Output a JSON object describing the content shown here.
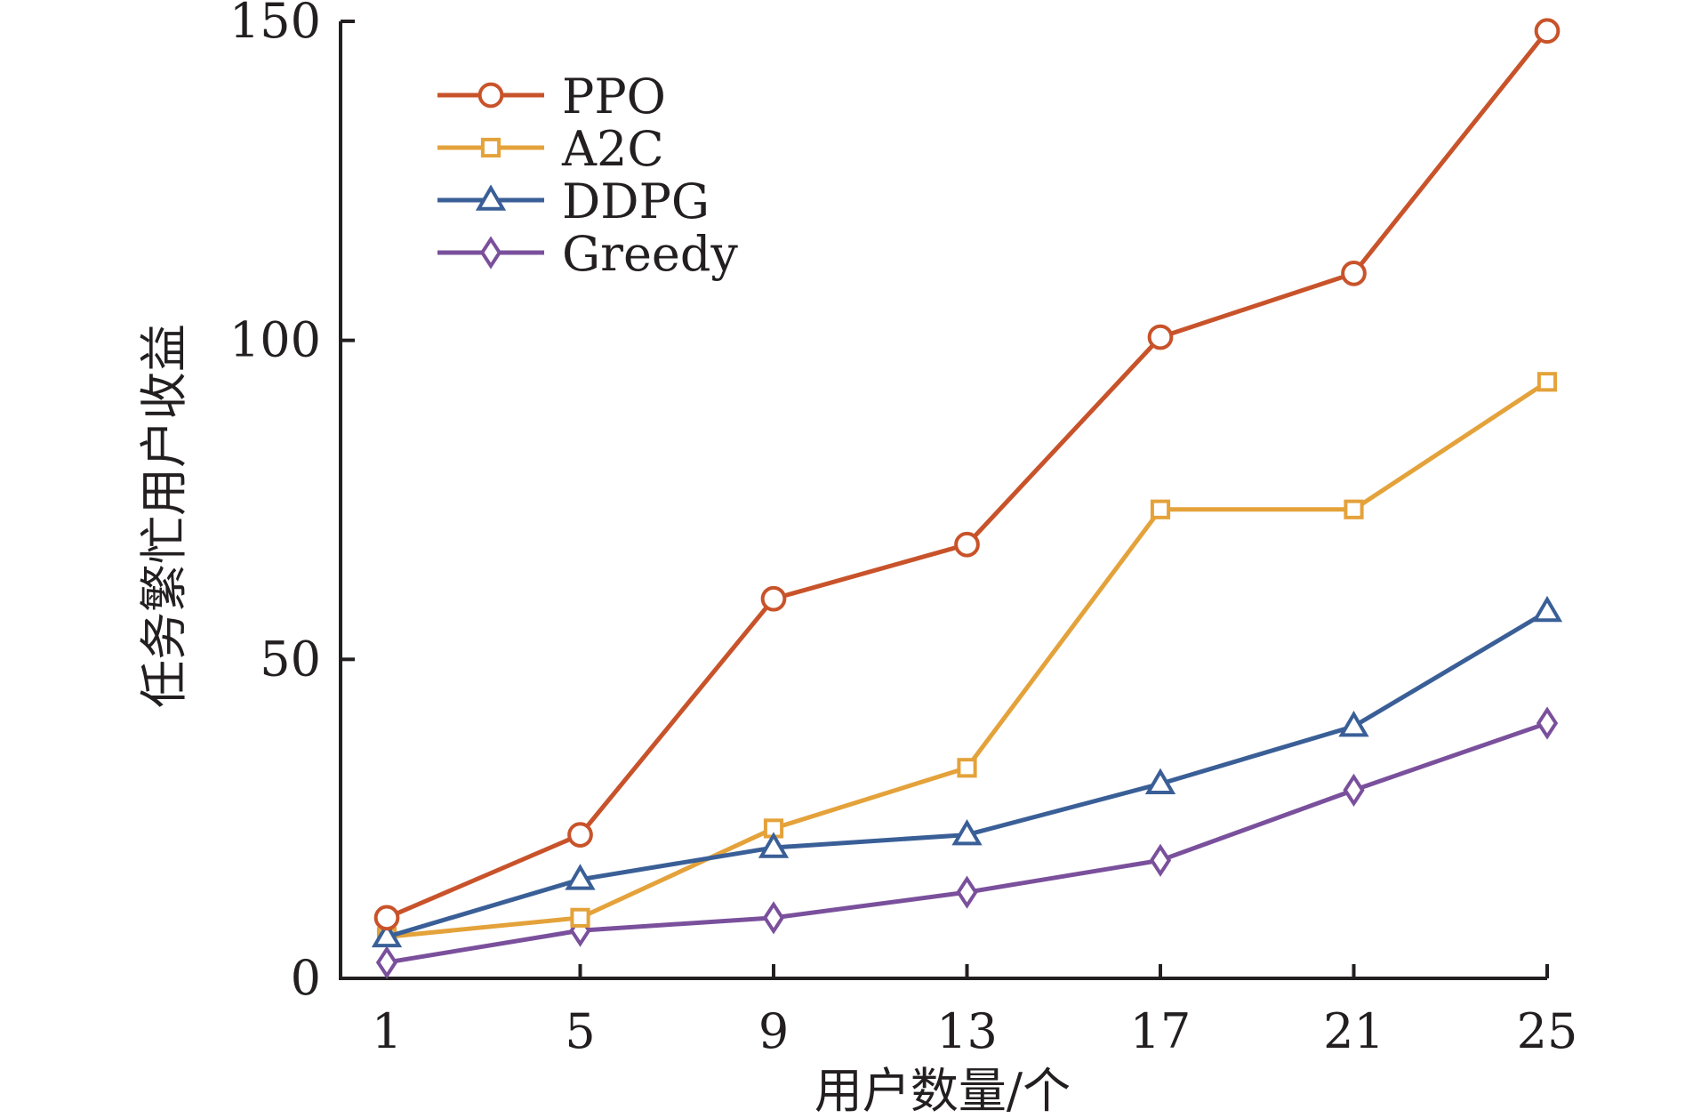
{
  "chart_data": {
    "type": "line",
    "xlabel": "用户数量/个",
    "ylabel": "任务繁忙用户收益",
    "x": [
      1,
      5,
      9,
      13,
      17,
      21,
      25
    ],
    "x_tick_labels": [
      "1",
      "5",
      "9",
      "13",
      "17",
      "21",
      "25"
    ],
    "xlim": [
      0,
      25
    ],
    "ylim": [
      0,
      150
    ],
    "y_ticks": [
      0,
      50,
      100,
      150
    ],
    "y_tick_labels": [
      "0",
      "50",
      "100",
      "150"
    ],
    "grid": false,
    "legend_position": "top-left",
    "series": [
      {
        "name": "PPO",
        "color": "#c8532a",
        "marker": "circle",
        "values": [
          9.5,
          22.5,
          59.5,
          68,
          100.5,
          110.5,
          148.5
        ]
      },
      {
        "name": "A2C",
        "color": "#e4a23a",
        "marker": "square",
        "values": [
          6.5,
          9.5,
          23.5,
          33,
          73.5,
          73.5,
          93.5
        ]
      },
      {
        "name": "DDPG",
        "color": "#3a5f97",
        "marker": "triangle",
        "values": [
          6.5,
          15.5,
          20.5,
          22.5,
          30.5,
          39.5,
          57.5
        ]
      },
      {
        "name": "Greedy",
        "color": "#7a509c",
        "marker": "diamond",
        "values": [
          2.5,
          7.5,
          9.5,
          13.5,
          18.5,
          29.5,
          40
        ]
      }
    ]
  }
}
